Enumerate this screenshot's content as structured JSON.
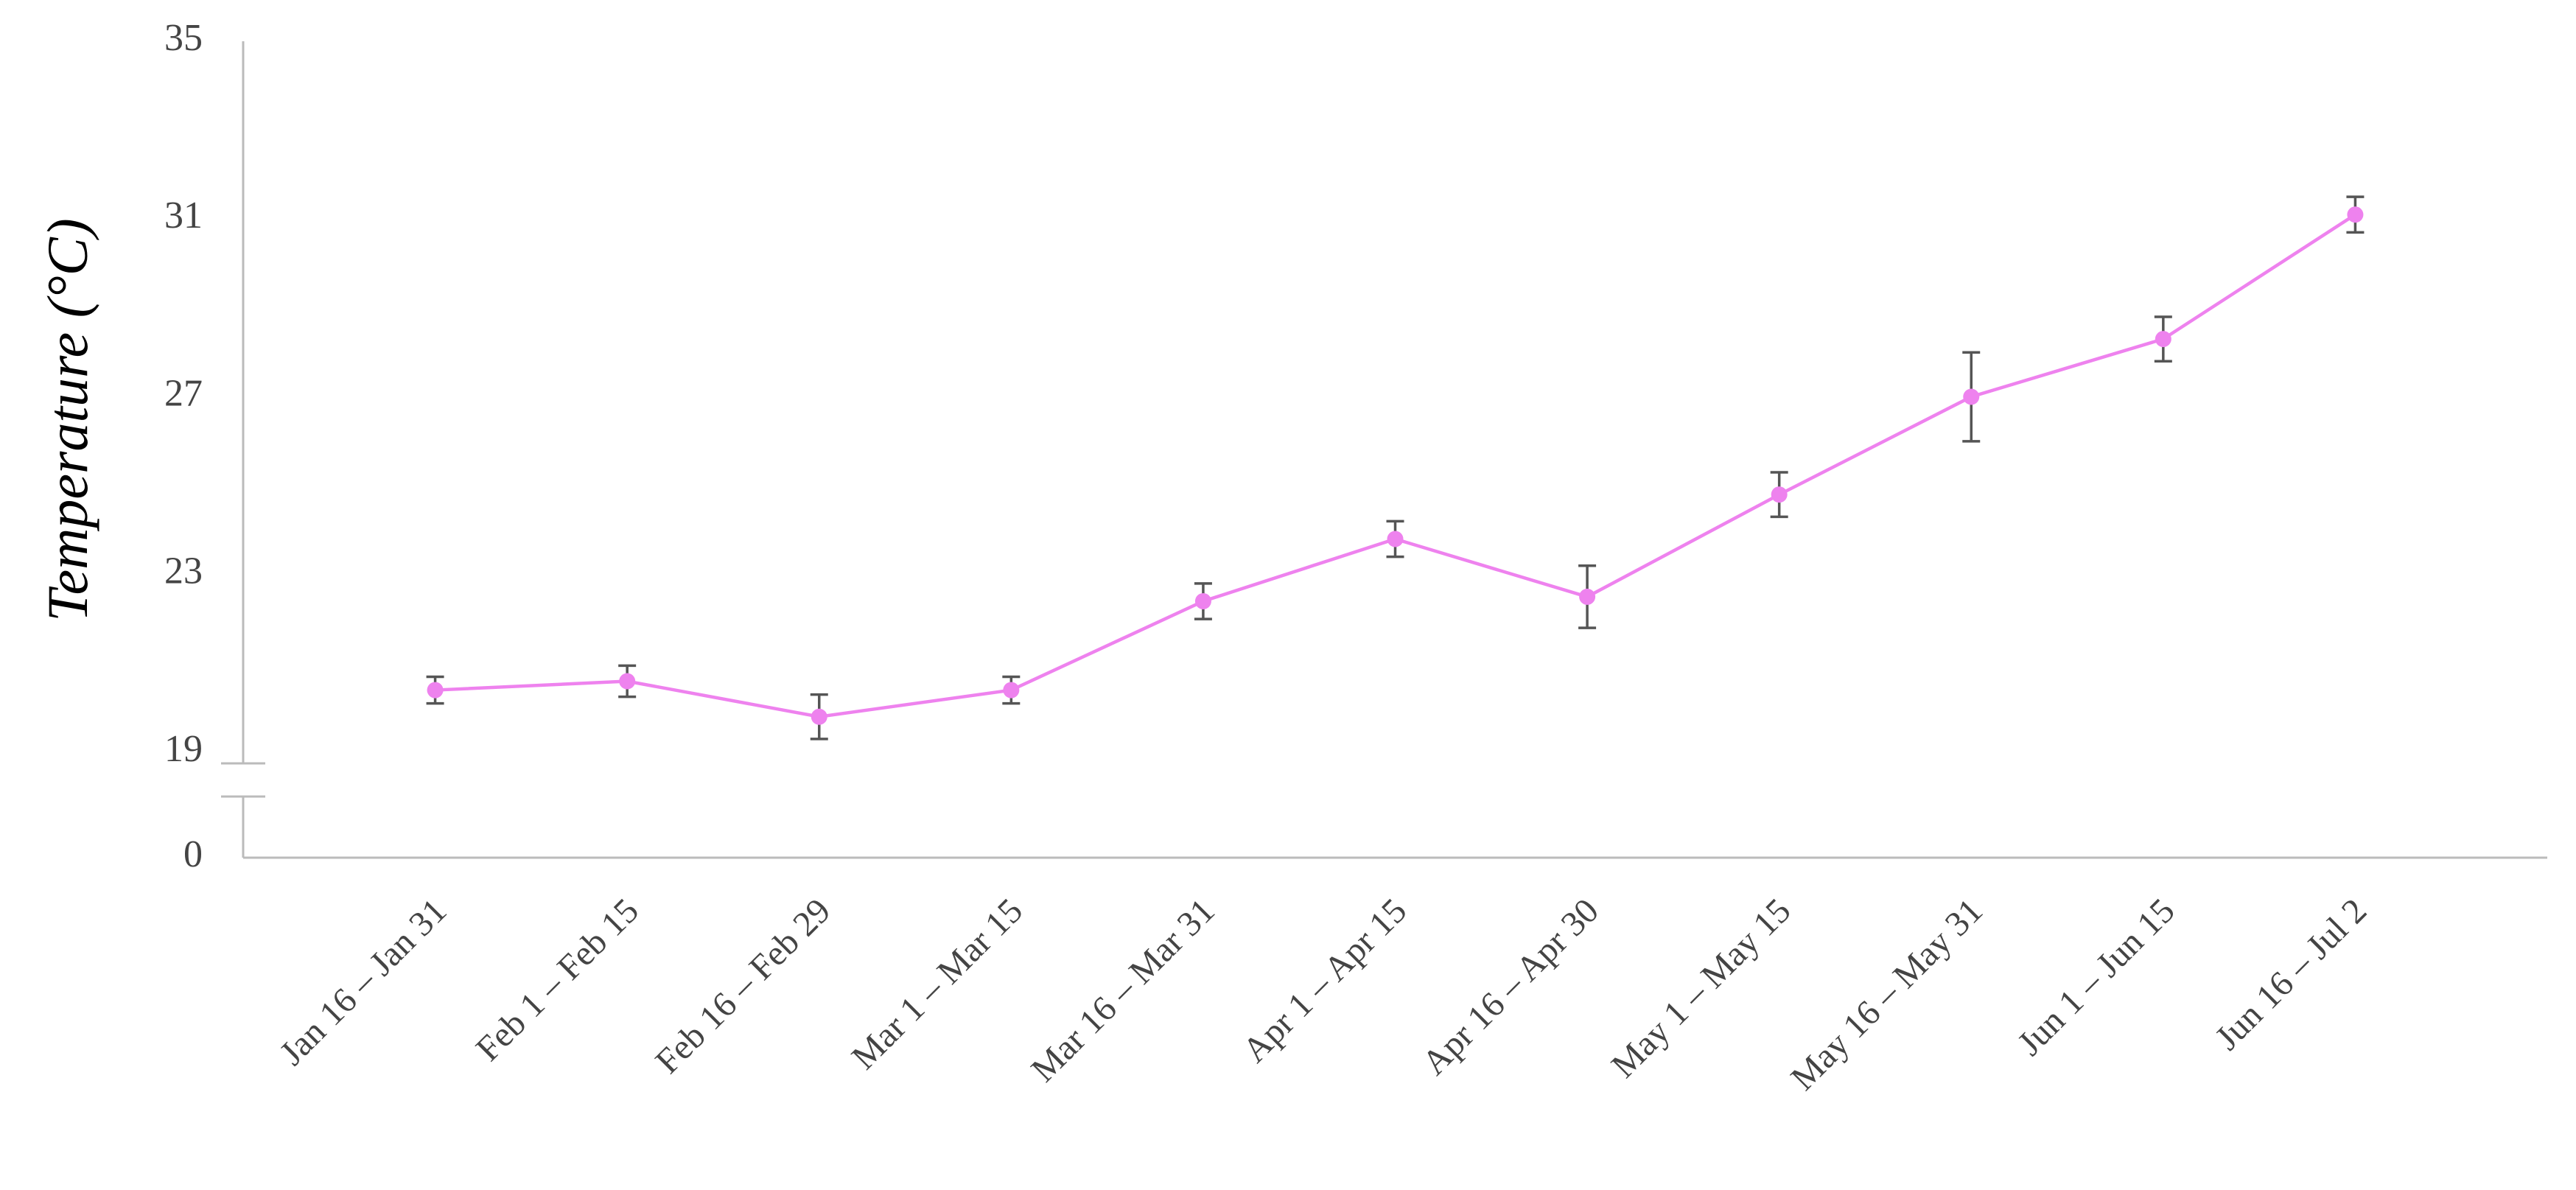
{
  "chart_data": {
    "type": "line",
    "y_label": "Temperature (°C)",
    "categories": [
      "Jan 16 – Jan 31",
      "Feb 1 – Feb 15",
      "Feb 16 – Feb 29",
      "Mar 1 – Mar 15",
      "Mar 16 – Mar 31",
      "Apr 1 – Apr 15",
      "Apr 16 – Apr 30",
      "May 1 – May 15",
      "May 16 – May 31",
      "Jun 1 – Jun 15",
      "Jun 16 – Jul 2"
    ],
    "values": [
      20.4,
      20.6,
      19.8,
      20.4,
      22.4,
      23.8,
      22.5,
      24.8,
      27.0,
      28.3,
      31.1
    ],
    "errors": [
      0.3,
      0.35,
      0.5,
      0.3,
      0.4,
      0.4,
      0.7,
      0.5,
      1.0,
      0.5,
      0.4
    ],
    "color": "#ee82ee",
    "error_color": "#555555",
    "ylim": [
      0,
      35
    ],
    "y_axis_break": [
      0,
      19
    ],
    "yticks": [
      0,
      19,
      23,
      27,
      31,
      35
    ],
    "grid": false
  }
}
